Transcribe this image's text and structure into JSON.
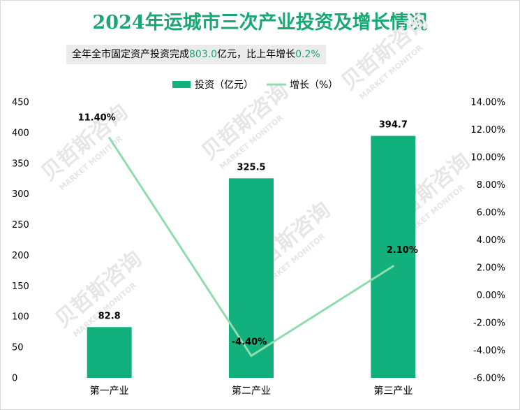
{
  "title": "2024年运城市三次产业投资及增长情况",
  "subtitle": {
    "prefix": "全年全市固定资产投资完成",
    "value1": "803.0",
    "middle": "亿元，比上年增长",
    "value2": "0.2%"
  },
  "watermark": {
    "cn": "贝哲斯咨询",
    "en": "MARKET MONITOR"
  },
  "colors": {
    "bar": "#12b07c",
    "line": "#8fdcae",
    "title": "#1aa772"
  },
  "chart_data": {
    "type": "bar",
    "categories": [
      "第一产业",
      "第二产业",
      "第三产业"
    ],
    "series": [
      {
        "name": "投资（亿元）",
        "type": "bar",
        "axis": "left",
        "values": [
          82.8,
          325.5,
          394.7
        ],
        "labels": [
          "82.8",
          "325.5",
          "394.7"
        ]
      },
      {
        "name": "增长（%）",
        "type": "line",
        "axis": "right",
        "values": [
          11.4,
          -4.4,
          2.1
        ],
        "labels": [
          "11.40%",
          "-4.40%",
          "2.10%"
        ]
      }
    ],
    "y_left": {
      "min": 0,
      "max": 450,
      "step": 50,
      "ticks": [
        "0",
        "50",
        "100",
        "150",
        "200",
        "250",
        "300",
        "350",
        "400",
        "450"
      ]
    },
    "y_right": {
      "min": -6,
      "max": 14,
      "step": 2,
      "ticks": [
        "-6.00%",
        "-4.00%",
        "-2.00%",
        "0.00%",
        "2.00%",
        "4.00%",
        "6.00%",
        "8.00%",
        "10.00%",
        "12.00%",
        "14.00%"
      ]
    },
    "legend": [
      "投资（亿元）",
      "增长（%）"
    ],
    "legend_position": "top"
  }
}
